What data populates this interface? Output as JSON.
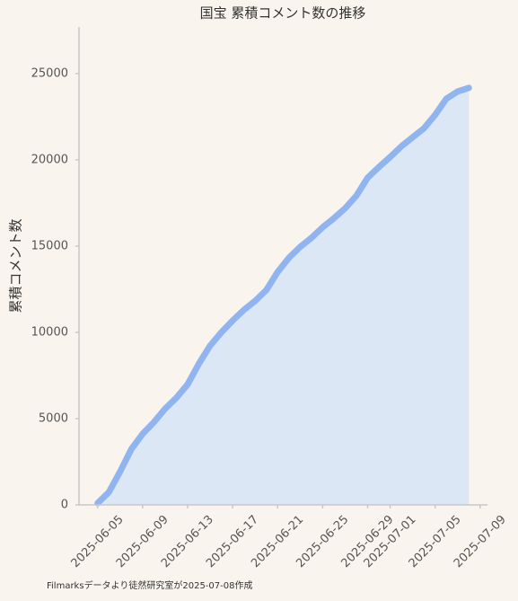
{
  "chart_data": {
    "type": "area",
    "title": "国宝 累積コメント数の推移",
    "ylabel": "累積コメント数",
    "caption": "Filmarksデータより徒然研究室が2025-07-08作成",
    "x": [
      "2025-06-05",
      "2025-06-06",
      "2025-06-07",
      "2025-06-08",
      "2025-06-09",
      "2025-06-10",
      "2025-06-11",
      "2025-06-12",
      "2025-06-13",
      "2025-06-14",
      "2025-06-15",
      "2025-06-16",
      "2025-06-17",
      "2025-06-18",
      "2025-06-19",
      "2025-06-20",
      "2025-06-21",
      "2025-06-22",
      "2025-06-23",
      "2025-06-24",
      "2025-06-25",
      "2025-06-26",
      "2025-06-27",
      "2025-06-28",
      "2025-06-29",
      "2025-06-30",
      "2025-07-01",
      "2025-07-02",
      "2025-07-03",
      "2025-07-04",
      "2025-07-05",
      "2025-07-06",
      "2025-07-07",
      "2025-07-08"
    ],
    "values": [
      100,
      730,
      1930,
      3230,
      4110,
      4790,
      5570,
      6200,
      6980,
      8180,
      9220,
      10000,
      10680,
      11300,
      11820,
      12450,
      13490,
      14320,
      14950,
      15470,
      16090,
      16610,
      17190,
      17920,
      18960,
      19580,
      20160,
      20780,
      21300,
      21820,
      22600,
      23540,
      23960,
      24170
    ],
    "color": "#8fb4f0",
    "fill_color": "#dce7f5",
    "xlim": [
      "2025-06-03T08:24",
      "2025-07-09T15:36"
    ],
    "xticks": [
      "2025-06-05",
      "2025-06-09",
      "2025-06-13",
      "2025-06-17",
      "2025-06-21",
      "2025-06-25",
      "2025-06-29",
      "2025-07-01",
      "2025-07-05",
      "2025-07-09"
    ],
    "ylim": [
      0,
      27700
    ],
    "yticks": [
      0,
      5000,
      10000,
      15000,
      20000,
      25000
    ],
    "grid": false
  }
}
